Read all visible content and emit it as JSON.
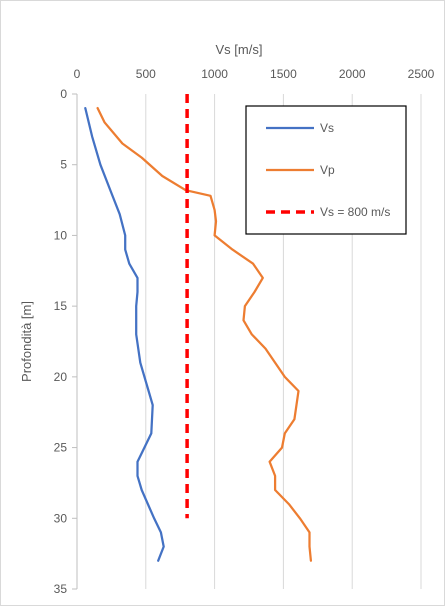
{
  "chart_data": {
    "type": "line",
    "title": "",
    "xlabel": "Vs [m/s]",
    "ylabel": "Profondità [m]",
    "xlim": [
      0,
      2500
    ],
    "ylim": [
      0,
      35
    ],
    "y_inverted": true,
    "x_axis_position": "top",
    "x_ticks": [
      "0",
      "500",
      "1000",
      "1500",
      "2000",
      "2500"
    ],
    "y_ticks": [
      "0",
      "5",
      "10",
      "15",
      "20",
      "25",
      "30",
      "35"
    ],
    "grid": {
      "vertical": true,
      "horizontal": false
    },
    "legend_position": "top-right",
    "series": [
      {
        "name": "Vs",
        "color": "#4472C4",
        "style": "solid",
        "points": [
          [
            60,
            1
          ],
          [
            110,
            3
          ],
          [
            170,
            5
          ],
          [
            250,
            7
          ],
          [
            310,
            8.5
          ],
          [
            350,
            10
          ],
          [
            350,
            11
          ],
          [
            380,
            12
          ],
          [
            440,
            13
          ],
          [
            440,
            14
          ],
          [
            430,
            15
          ],
          [
            430,
            16
          ],
          [
            430,
            17
          ],
          [
            460,
            19
          ],
          [
            520,
            21
          ],
          [
            550,
            22
          ],
          [
            540,
            24
          ],
          [
            490,
            25
          ],
          [
            440,
            26
          ],
          [
            440,
            27
          ],
          [
            470,
            28
          ],
          [
            560,
            30
          ],
          [
            610,
            31
          ],
          [
            630,
            32
          ],
          [
            590,
            33
          ]
        ]
      },
      {
        "name": "Vp",
        "color": "#ED7D31",
        "style": "solid",
        "points": [
          [
            150,
            1
          ],
          [
            200,
            2
          ],
          [
            330,
            3.5
          ],
          [
            470,
            4.5
          ],
          [
            620,
            5.8
          ],
          [
            790,
            6.8
          ],
          [
            970,
            7.2
          ],
          [
            1000,
            8.2
          ],
          [
            1010,
            9
          ],
          [
            1000,
            10
          ],
          [
            1130,
            11
          ],
          [
            1280,
            12
          ],
          [
            1350,
            13
          ],
          [
            1290,
            14
          ],
          [
            1220,
            15
          ],
          [
            1210,
            16
          ],
          [
            1270,
            17
          ],
          [
            1370,
            18
          ],
          [
            1510,
            20
          ],
          [
            1610,
            21
          ],
          [
            1580,
            23
          ],
          [
            1510,
            24
          ],
          [
            1490,
            25
          ],
          [
            1400,
            26
          ],
          [
            1440,
            27
          ],
          [
            1440,
            28
          ],
          [
            1540,
            29
          ],
          [
            1620,
            30
          ],
          [
            1690,
            31
          ],
          [
            1690,
            32
          ],
          [
            1700,
            33
          ]
        ]
      },
      {
        "name": "Vs = 800 m/s",
        "color": "#FF0000",
        "style": "dashed",
        "points": [
          [
            800,
            0
          ],
          [
            800,
            30
          ]
        ]
      }
    ]
  }
}
